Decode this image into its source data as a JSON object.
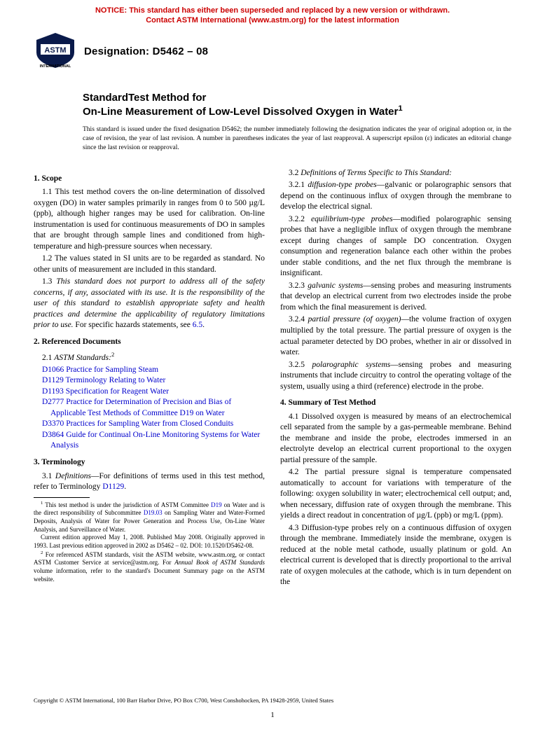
{
  "notice": {
    "line1": "NOTICE: This standard has either been superseded and replaced by a new version or withdrawn.",
    "line2": "Contact ASTM International (www.astm.org) for the latest information"
  },
  "logo": {
    "label_top": "INTERNATIONAL",
    "color_navy": "#0a1a4a",
    "color_text": "#ffffff"
  },
  "header": {
    "designation": "Designation: D5462 – 08"
  },
  "title": {
    "line1": "StandardTest Method for",
    "line2": "On-Line Measurement of Low-Level Dissolved Oxygen in Water",
    "sup": "1"
  },
  "issuance": "This standard is issued under the fixed designation D5462; the number immediately following the designation indicates the year of original adoption or, in the case of revision, the year of last revision. A number in parentheses indicates the year of last reapproval. A superscript epsilon (ε) indicates an editorial change since the last revision or reapproval.",
  "left": {
    "s1_head": "1. Scope",
    "s1_1": "1.1 This test method covers the on-line determination of dissolved oxygen (DO) in water samples primarily in ranges from 0 to 500 µg/L (ppb), although higher ranges may be used for calibration. On-line instrumentation is used for continuous measurements of DO in samples that are brought through sample lines and conditioned from high-temperature and high-pressure sources when necessary.",
    "s1_2": "1.2 The values stated in SI units are to be regarded as standard. No other units of measurement are included in this standard.",
    "s1_3a": "1.3 ",
    "s1_3i": "This standard does not purport to address all of the safety concerns, if any, associated with its use. It is the responsibility of the user of this standard to establish appropriate safety and health practices and determine the applicability of regulatory limitations prior to use.",
    "s1_3b": " For specific hazards statements, see ",
    "s1_3link": "6.5",
    "s1_3c": ".",
    "s2_head": "2. Referenced Documents",
    "s2_1_lead": "2.1 ",
    "s2_1_label": "ASTM Standards:",
    "s2_1_sup": "2",
    "refs": [
      {
        "code": "D1066",
        "title": "Practice for Sampling Steam"
      },
      {
        "code": "D1129",
        "title": "Terminology Relating to Water"
      },
      {
        "code": "D1193",
        "title": "Specification for Reagent Water"
      },
      {
        "code": "D2777",
        "title": "Practice for Determination of Precision and Bias of Applicable Test Methods of Committee D19 on Water"
      },
      {
        "code": "D3370",
        "title": "Practices for Sampling Water from Closed Conduits"
      },
      {
        "code": "D3864",
        "title": "Guide for Continual On-Line Monitoring Systems for Water Analysis"
      }
    ],
    "s3_head": "3. Terminology",
    "s3_1a": "3.1 ",
    "s3_1i": "Definitions",
    "s3_1b": "—For definitions of terms used in this test method, refer to Terminology ",
    "s3_1link": "D1129",
    "s3_1c": ".",
    "fn1": " This test method is under the jurisdiction of ASTM Committee ",
    "fn1_link1": "D19",
    "fn1b": " on Water and is the direct responsibility of Subcommittee ",
    "fn1_link2": "D19.03",
    "fn1c": " on Sampling Water and Water-Formed Deposits, Analysis of Water for Power Generation and Process Use, On-Line Water Analysis, and Surveillance of Water.",
    "fn1d": "Current edition approved May 1, 2008. Published May 2008. Originally approved in 1993. Last previous edition approved in 2002 as D5462 – 02. DOI: 10.1520/D5462-08.",
    "fn2a": " For referenced ASTM standards, visit the ASTM website, www.astm.org, or contact ASTM Customer Service at service@astm.org. For ",
    "fn2i": "Annual Book of ASTM Standards",
    "fn2b": " volume information, refer to the standard's Document Summary page on the ASTM website."
  },
  "right": {
    "s3_2_lead": "3.2 ",
    "s3_2_i": "Definitions of Terms Specific to This Standard:",
    "t1n": "3.2.1 ",
    "t1t": "diffusion-type probes",
    "t1b": "—galvanic or polarographic sensors that depend on the continuous influx of oxygen through the membrane to develop the electrical signal.",
    "t2n": "3.2.2 ",
    "t2t": "equilibrium-type probes",
    "t2b": "—modified polarographic sensing probes that have a negligible influx of oxygen through the membrane except during changes of sample DO concentration. Oxygen consumption and regeneration balance each other within the probes under stable conditions, and the net flux through the membrane is insignificant.",
    "t3n": "3.2.3 ",
    "t3t": "galvanic systems",
    "t3b": "—sensing probes and measuring instruments that develop an electrical current from two electrodes inside the probe from which the final measurement is derived.",
    "t4n": "3.2.4 ",
    "t4t": "partial pressure (of oxygen)",
    "t4b": "—the volume fraction of oxygen multiplied by the total pressure. The partial pressure of oxygen is the actual parameter detected by DO probes, whether in air or dissolved in water.",
    "t5n": "3.2.5 ",
    "t5t": "polarographic systems",
    "t5b": "—sensing probes and measuring instruments that include circuitry to control the operating voltage of the system, usually using a third (reference) electrode in the probe.",
    "s4_head": "4. Summary of Test Method",
    "s4_1": "4.1 Dissolved oxygen is measured by means of an electrochemical cell separated from the sample by a gas-permeable membrane. Behind the membrane and inside the probe, electrodes immersed in an electrolyte develop an electrical current proportional to the oxygen partial pressure of the sample.",
    "s4_2": "4.2 The partial pressure signal is temperature compensated automatically to account for variations with temperature of the following: oxygen solubility in water; electrochemical cell output; and, when necessary, diffusion rate of oxygen through the membrane. This yields a direct readout in concentration of µg/L (ppb) or mg/L (ppm).",
    "s4_3": "4.3 Diffusion-type probes rely on a continuous diffusion of oxygen through the membrane. Immediately inside the membrane, oxygen is reduced at the noble metal cathode, usually platinum or gold. An electrical current is developed that is directly proportional to the arrival rate of oxygen molecules at the cathode, which is in turn dependent on the"
  },
  "copyright": "Copyright © ASTM International, 100 Barr Harbor Drive, PO Box C700, West Conshohocken, PA 19428-2959, United States",
  "pagenum": "1",
  "colors": {
    "notice_red": "#cc0000",
    "link_blue": "#0000cc",
    "text": "#000000",
    "background": "#ffffff"
  }
}
